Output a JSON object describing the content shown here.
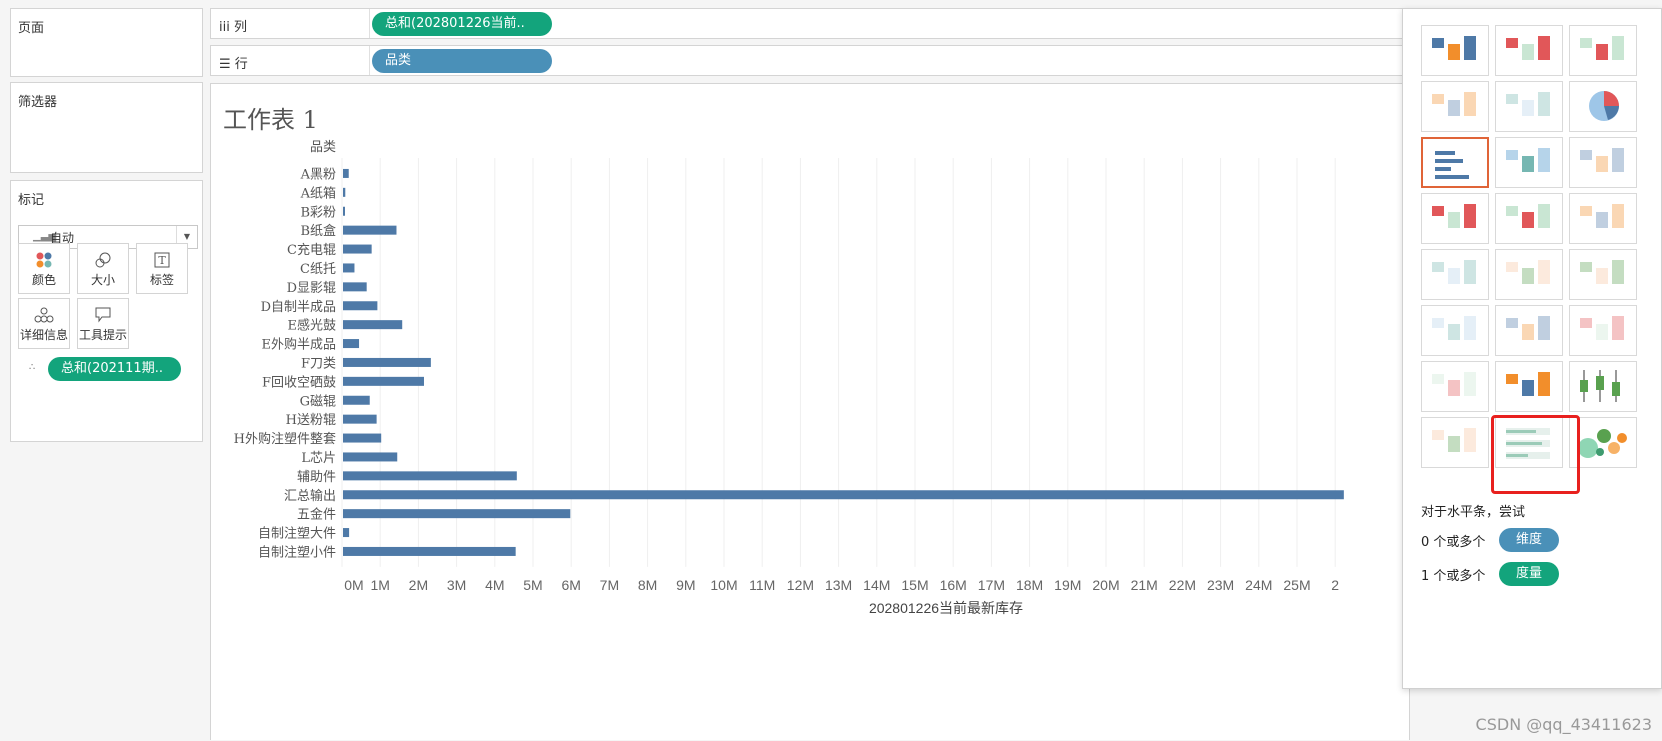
{
  "left": {
    "pages_title": "页面",
    "filters_title": "筛选器",
    "marks_title": "标记",
    "marks_type": "自动",
    "mark_buttons": {
      "color": "颜色",
      "size": "大小",
      "label": "标签",
      "detail": "详细信息",
      "tooltip": "工具提示"
    },
    "detail_pill": "总和(202111期.."
  },
  "shelves": {
    "columns_label": "iii 列",
    "columns_pill": "总和(202801226当前..",
    "rows_label": "☰ 行",
    "rows_pill": "品类"
  },
  "view": {
    "title": "工作表 1"
  },
  "chart_data": {
    "type": "bar",
    "orientation": "horizontal",
    "ylabel": "品类",
    "xlabel": "202801226当前最新库存",
    "categories": [
      "A黑粉",
      "A纸箱",
      "B彩粉",
      "B纸盒",
      "C充电辊",
      "C纸托",
      "D显影辊",
      "D自制半成品",
      "E感光鼓",
      "E外购半成品",
      "F刀类",
      "F回收空硒鼓",
      "G磁辊",
      "H送粉辊",
      "H外购注塑件整套",
      "L芯片",
      "辅助件",
      "汇总输出",
      "五金件",
      "自制注塑大件",
      "自制注塑小件"
    ],
    "values": [
      0.15,
      0.06,
      0.04,
      1.4,
      0.75,
      0.3,
      0.62,
      0.9,
      1.55,
      0.42,
      2.3,
      2.12,
      0.7,
      0.88,
      1.0,
      1.42,
      4.55,
      26.2,
      5.95,
      0.16,
      4.52
    ],
    "xticks": [
      "0M",
      "1M",
      "2M",
      "3M",
      "4M",
      "5M",
      "6M",
      "7M",
      "8M",
      "9M",
      "10M",
      "11M",
      "12M",
      "13M",
      "14M",
      "15M",
      "16M",
      "17M",
      "18M",
      "19M",
      "20M",
      "21M",
      "22M",
      "23M",
      "24M",
      "25M",
      "2"
    ],
    "bar_color": "#4e79a7"
  },
  "showme": {
    "hint_title": "对于水平条，尝试",
    "dim_text": "0 个或多个",
    "dim_pill": "维度",
    "meas_text": "1 个或多个",
    "meas_pill": "度量",
    "thumbs": [
      "text-table",
      "heat-map",
      "highlight-table",
      "symbol-map",
      "filled-map",
      "pie",
      "horizontal-bars",
      "stacked-bars",
      "side-by-side-bars",
      "treemap",
      "circle-views",
      "side-by-side-circles",
      "lines-continuous",
      "lines-discrete",
      "dual-lines",
      "area-continuous",
      "area-discrete",
      "dual-combination",
      "scatter-plot",
      "histogram",
      "box-whisker",
      "gantt",
      "bullet-graph",
      "packed-bubbles"
    ]
  },
  "watermark": "CSDN @qq_43411623"
}
